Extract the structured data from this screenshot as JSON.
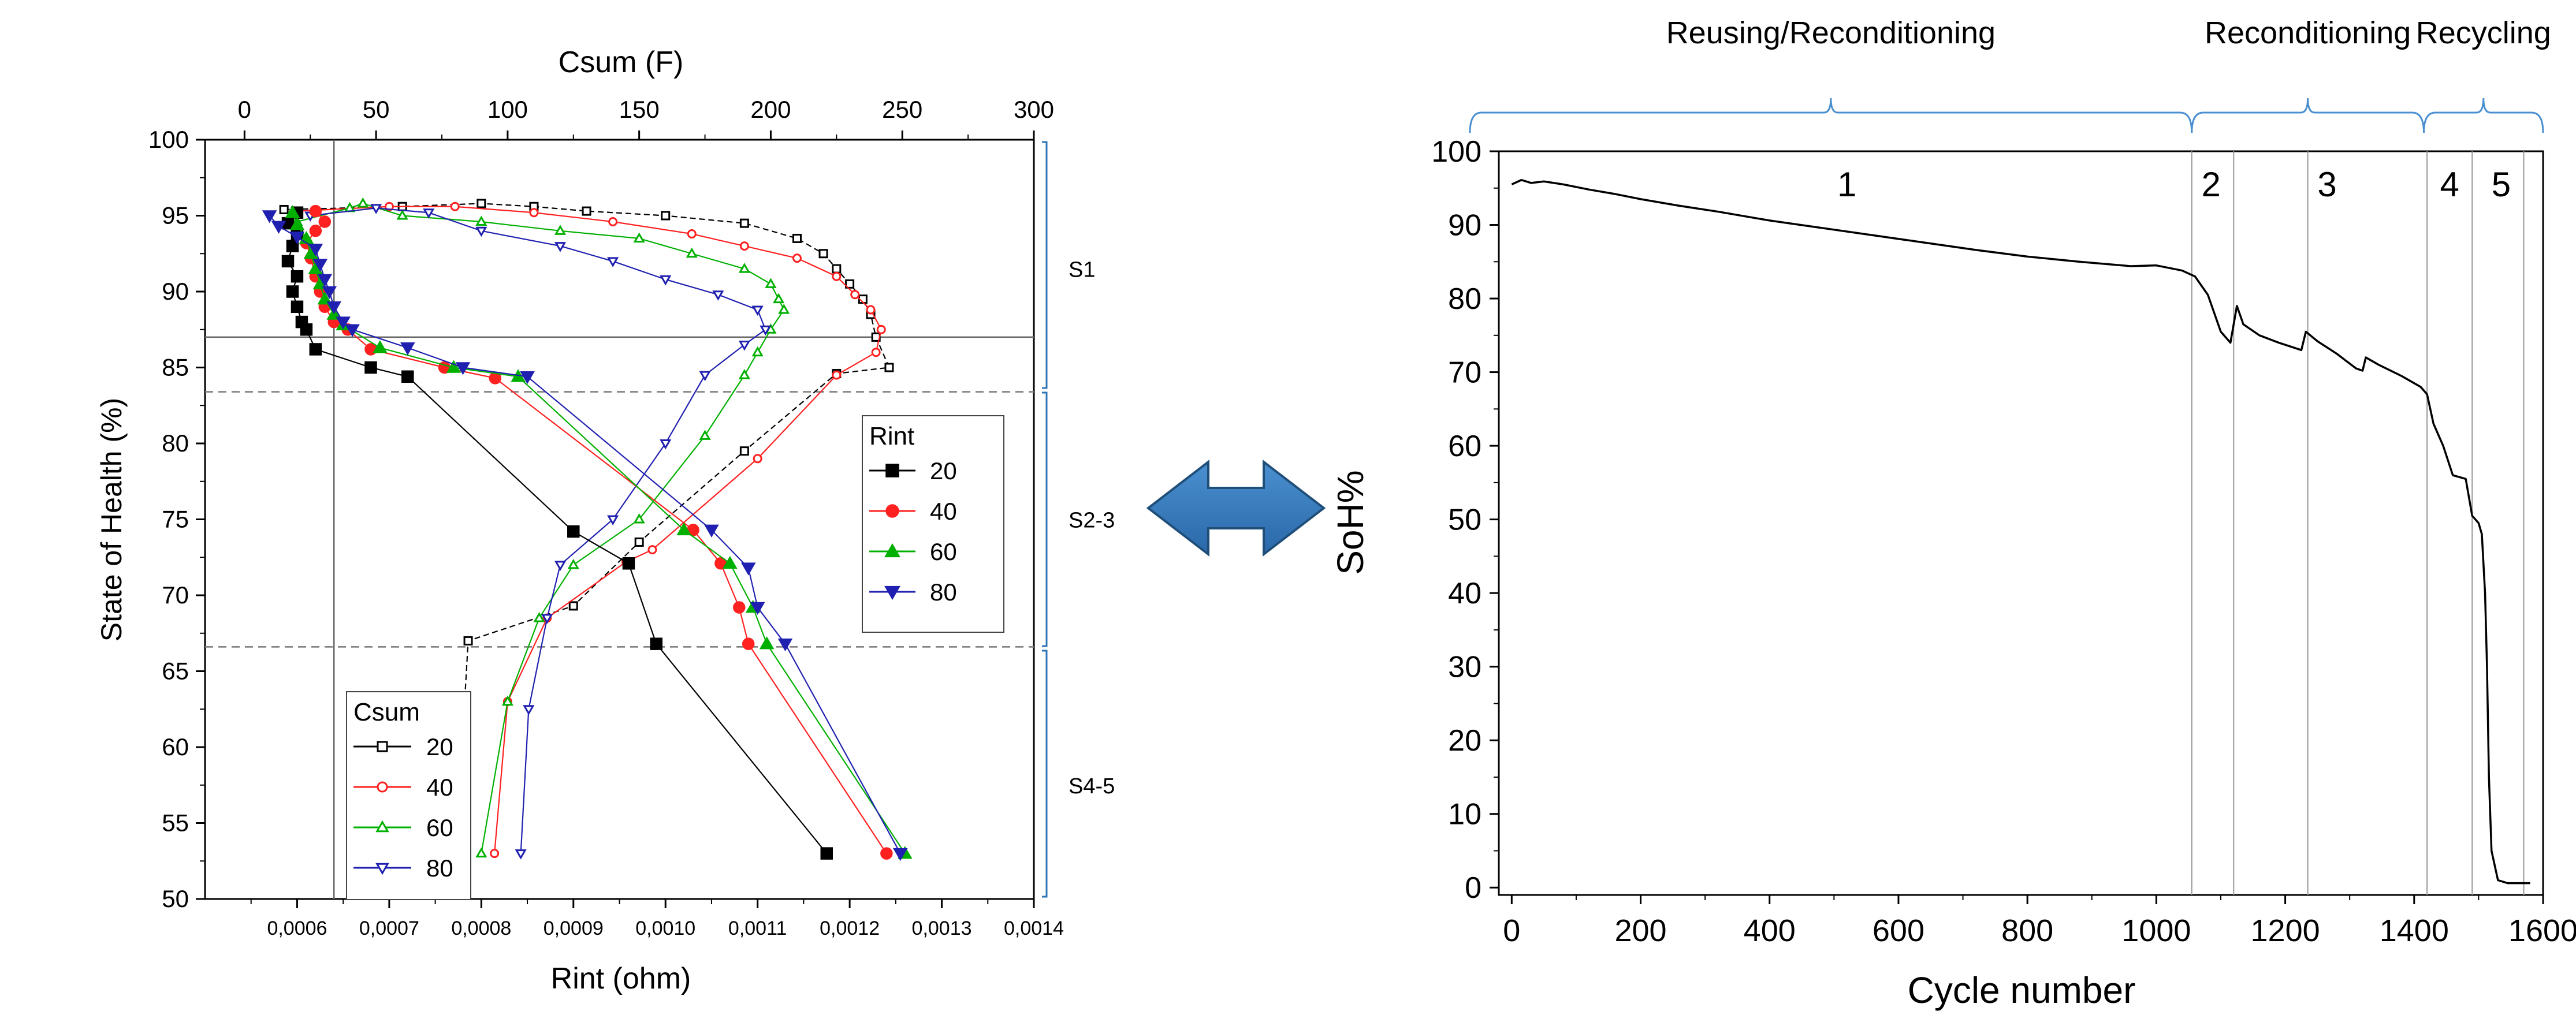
{
  "chart_data": [
    {
      "type": "scatter",
      "ylabel": "State of Health (%)",
      "xlabel": "Rint (ohm)",
      "x2label": "Csum (F)",
      "xlim": [
        0.0005,
        0.0014
      ],
      "x2lim": [
        -15,
        300
      ],
      "ylim": [
        50,
        100
      ],
      "xticks": [
        "0,0006",
        "0,0007",
        "0,0008",
        "0,0009",
        "0,0010",
        "0,0011",
        "0,0012",
        "0,0013",
        "0,0014"
      ],
      "xtick_values": [
        0.0006,
        0.0007,
        0.0008,
        0.0009,
        0.001,
        0.0011,
        0.0012,
        0.0013,
        0.0014
      ],
      "x2ticks": [
        0,
        50,
        100,
        150,
        200,
        250,
        300
      ],
      "yticks": [
        50,
        55,
        60,
        65,
        70,
        75,
        80,
        85,
        90,
        95,
        100
      ],
      "stage_labels": [
        {
          "text": "S1",
          "y": 91.5
        },
        {
          "text": "S2-3",
          "y": 75
        },
        {
          "text": "S4-5",
          "y": 57.5
        }
      ],
      "stage_brackets": [
        [
          100,
          83.5
        ],
        [
          83.5,
          66.5
        ],
        [
          66.5,
          50
        ]
      ],
      "hlines": [
        {
          "y": 87,
          "style": "solid"
        },
        {
          "y": 83.4,
          "style": "dashed"
        },
        {
          "y": 66.6,
          "style": "dashed"
        }
      ],
      "vline_x": 0.00064,
      "rint_legend": {
        "title": "Rint",
        "entries": [
          {
            "label": "20",
            "color": "#000000",
            "marker": "square"
          },
          {
            "label": "40",
            "color": "#ff2020",
            "marker": "circle"
          },
          {
            "label": "60",
            "color": "#00b000",
            "marker": "triangle-up"
          },
          {
            "label": "80",
            "color": "#2020b0",
            "marker": "triangle-down"
          }
        ]
      },
      "csum_legend": {
        "title": "Csum",
        "entries": [
          {
            "label": "20",
            "color": "#000000",
            "marker": "open-square"
          },
          {
            "label": "40",
            "color": "#ff2020",
            "marker": "open-circle"
          },
          {
            "label": "60",
            "color": "#00b000",
            "marker": "open-triangle-up"
          },
          {
            "label": "80",
            "color": "#2020b0",
            "marker": "open-triangle-down"
          }
        ]
      },
      "rint_series": [
        {
          "name": "20",
          "color": "#000000",
          "marker": "square",
          "points": [
            [
              0.0006,
              95.2
            ],
            [
              0.00059,
              94.5
            ],
            [
              0.0006,
              93.8
            ],
            [
              0.000595,
              93.0
            ],
            [
              0.00059,
              92.0
            ],
            [
              0.0006,
              91.0
            ],
            [
              0.000595,
              90.0
            ],
            [
              0.0006,
              89.0
            ],
            [
              0.000605,
              88.0
            ],
            [
              0.00061,
              87.5
            ],
            [
              0.00062,
              86.2
            ],
            [
              0.00068,
              85.0
            ],
            [
              0.00072,
              84.4
            ],
            [
              0.0009,
              74.2
            ],
            [
              0.00096,
              72.1
            ],
            [
              0.00099,
              66.8
            ],
            [
              0.001175,
              53.0
            ]
          ]
        },
        {
          "name": "40",
          "color": "#ff2020",
          "marker": "circle",
          "points": [
            [
              0.00062,
              95.3
            ],
            [
              0.00063,
              94.6
            ],
            [
              0.00062,
              94.0
            ],
            [
              0.00061,
              93.2
            ],
            [
              0.000615,
              92.2
            ],
            [
              0.00062,
              91.0
            ],
            [
              0.000625,
              90.0
            ],
            [
              0.00063,
              89.0
            ],
            [
              0.00064,
              88.0
            ],
            [
              0.000655,
              87.5
            ],
            [
              0.00068,
              86.2
            ],
            [
              0.00076,
              85.0
            ],
            [
              0.000815,
              84.3
            ],
            [
              0.00103,
              74.3
            ],
            [
              0.00106,
              72.1
            ],
            [
              0.00108,
              69.2
            ],
            [
              0.00109,
              66.8
            ],
            [
              0.00124,
              53.0
            ]
          ]
        },
        {
          "name": "60",
          "color": "#00b000",
          "marker": "triangle-up",
          "points": [
            [
              0.000595,
              95.2
            ],
            [
              0.0006,
              94.4
            ],
            [
              0.00061,
              93.5
            ],
            [
              0.000615,
              92.5
            ],
            [
              0.00062,
              91.5
            ],
            [
              0.000625,
              90.5
            ],
            [
              0.00063,
              89.5
            ],
            [
              0.00064,
              88.5
            ],
            [
              0.00065,
              87.8
            ],
            [
              0.00069,
              86.3
            ],
            [
              0.00077,
              85.0
            ],
            [
              0.00084,
              84.4
            ],
            [
              0.00102,
              74.3
            ],
            [
              0.00107,
              72.1
            ],
            [
              0.001095,
              69.2
            ],
            [
              0.00111,
              66.8
            ],
            [
              0.00126,
              53.0
            ]
          ]
        },
        {
          "name": "80",
          "color": "#2020b0",
          "marker": "triangle-down",
          "points": [
            [
              0.00057,
              95.0
            ],
            [
              0.00058,
              94.3
            ],
            [
              0.0006,
              93.6
            ],
            [
              0.00062,
              92.8
            ],
            [
              0.000625,
              91.8
            ],
            [
              0.00063,
              90.8
            ],
            [
              0.000635,
              90.0
            ],
            [
              0.00064,
              89.0
            ],
            [
              0.00065,
              88.0
            ],
            [
              0.00066,
              87.5
            ],
            [
              0.00072,
              86.3
            ],
            [
              0.00078,
              85.0
            ],
            [
              0.00085,
              84.4
            ],
            [
              0.00105,
              74.3
            ],
            [
              0.00109,
              71.8
            ],
            [
              0.0011,
              69.2
            ],
            [
              0.00113,
              66.8
            ],
            [
              0.001255,
              53.0
            ]
          ]
        }
      ],
      "csum_series": [
        {
          "name": "20",
          "color": "#000000",
          "marker": "open-square",
          "points": [
            [
              15,
              95.4
            ],
            [
              60,
              95.6
            ],
            [
              90,
              95.8
            ],
            [
              110,
              95.6
            ],
            [
              130,
              95.3
            ],
            [
              160,
              95.0
            ],
            [
              190,
              94.5
            ],
            [
              210,
              93.5
            ],
            [
              220,
              92.5
            ],
            [
              225,
              91.5
            ],
            [
              230,
              90.5
            ],
            [
              235,
              89.5
            ],
            [
              238,
              88.5
            ],
            [
              240,
              87.0
            ],
            [
              245,
              85.0
            ],
            [
              225,
              84.6
            ],
            [
              190,
              79.5
            ],
            [
              150,
              73.5
            ],
            [
              125,
              69.3
            ],
            [
              85,
              67.0
            ],
            [
              83,
              61.0
            ],
            [
              78,
              53.0
            ]
          ]
        },
        {
          "name": "40",
          "color": "#ff2020",
          "marker": "open-circle",
          "points": [
            [
              20,
              95.3
            ],
            [
              55,
              95.6
            ],
            [
              80,
              95.6
            ],
            [
              110,
              95.2
            ],
            [
              140,
              94.6
            ],
            [
              170,
              93.8
            ],
            [
              190,
              93.0
            ],
            [
              210,
              92.2
            ],
            [
              225,
              91.0
            ],
            [
              232,
              89.8
            ],
            [
              238,
              88.8
            ],
            [
              242,
              87.5
            ],
            [
              240,
              86.0
            ],
            [
              225,
              84.5
            ],
            [
              195,
              79.0
            ],
            [
              155,
              73.0
            ],
            [
              145,
              72.2
            ],
            [
              115,
              68.5
            ],
            [
              100,
              63.0
            ],
            [
              95,
              53.0
            ]
          ]
        },
        {
          "name": "60",
          "color": "#00b000",
          "marker": "open-triangle-up",
          "points": [
            [
              20,
              94.6
            ],
            [
              40,
              95.5
            ],
            [
              45,
              95.8
            ],
            [
              60,
              95.0
            ],
            [
              90,
              94.6
            ],
            [
              120,
              94.0
            ],
            [
              150,
              93.5
            ],
            [
              170,
              92.5
            ],
            [
              190,
              91.5
            ],
            [
              200,
              90.5
            ],
            [
              203,
              89.5
            ],
            [
              205,
              88.8
            ],
            [
              200,
              87.5
            ],
            [
              195,
              86.0
            ],
            [
              190,
              84.5
            ],
            [
              175,
              80.5
            ],
            [
              150,
              75.0
            ],
            [
              125,
              72.0
            ],
            [
              112,
              68.5
            ],
            [
              100,
              63.0
            ],
            [
              90,
              53.0
            ]
          ]
        },
        {
          "name": "80",
          "color": "#2020b0",
          "marker": "open-triangle-down",
          "points": [
            [
              25,
              95.0
            ],
            [
              50,
              95.5
            ],
            [
              70,
              95.2
            ],
            [
              90,
              94.0
            ],
            [
              120,
              93.0
            ],
            [
              140,
              92.0
            ],
            [
              160,
              90.8
            ],
            [
              180,
              89.8
            ],
            [
              195,
              88.8
            ],
            [
              198,
              87.5
            ],
            [
              190,
              86.5
            ],
            [
              175,
              84.5
            ],
            [
              160,
              80.0
            ],
            [
              140,
              75.0
            ],
            [
              120,
              72.0
            ],
            [
              115,
              68.5
            ],
            [
              108,
              62.5
            ],
            [
              105,
              53.0
            ]
          ]
        }
      ]
    },
    {
      "type": "line",
      "xlabel": "Cycle number",
      "ylabel": "SoH%",
      "xlim": [
        -20,
        1600
      ],
      "ylim": [
        -1,
        100
      ],
      "xticks": [
        0,
        200,
        400,
        600,
        800,
        1000,
        1200,
        1400,
        1600
      ],
      "yticks": [
        0,
        10,
        20,
        30,
        40,
        50,
        60,
        70,
        80,
        90,
        100
      ],
      "phases": [
        {
          "label": "1",
          "x": 520
        },
        {
          "label": "2",
          "x": 1085
        },
        {
          "label": "3",
          "x": 1265
        },
        {
          "label": "4",
          "x": 1455
        },
        {
          "label": "5",
          "x": 1535
        }
      ],
      "vlines": [
        1055,
        1120,
        1235,
        1420,
        1490,
        1570
      ],
      "braces": [
        {
          "label": "Reusing/Reconditioning",
          "from": -20,
          "to": 1055
        },
        {
          "label": "Reconditioning",
          "from": 1055,
          "to": 1415
        },
        {
          "label": "Recycling",
          "from": 1415,
          "to": 1600
        }
      ],
      "series": [
        {
          "color": "#000000",
          "points": [
            [
              0,
              95.5
            ],
            [
              15,
              96.1
            ],
            [
              30,
              95.7
            ],
            [
              50,
              95.9
            ],
            [
              80,
              95.5
            ],
            [
              120,
              94.8
            ],
            [
              160,
              94.2
            ],
            [
              200,
              93.5
            ],
            [
              260,
              92.6
            ],
            [
              320,
              91.8
            ],
            [
              400,
              90.6
            ],
            [
              480,
              89.6
            ],
            [
              560,
              88.6
            ],
            [
              640,
              87.6
            ],
            [
              720,
              86.6
            ],
            [
              800,
              85.7
            ],
            [
              880,
              85.0
            ],
            [
              960,
              84.4
            ],
            [
              1000,
              84.5
            ],
            [
              1040,
              83.8
            ],
            [
              1060,
              83.0
            ],
            [
              1080,
              80.5
            ],
            [
              1100,
              75.5
            ],
            [
              1115,
              74.0
            ],
            [
              1120,
              76.5
            ],
            [
              1125,
              79.0
            ],
            [
              1135,
              76.5
            ],
            [
              1160,
              75.0
            ],
            [
              1190,
              74.0
            ],
            [
              1225,
              73.0
            ],
            [
              1232,
              75.5
            ],
            [
              1250,
              74.2
            ],
            [
              1280,
              72.5
            ],
            [
              1310,
              70.5
            ],
            [
              1320,
              70.2
            ],
            [
              1325,
              72.0
            ],
            [
              1345,
              71.0
            ],
            [
              1380,
              69.5
            ],
            [
              1410,
              68.0
            ],
            [
              1420,
              67.0
            ],
            [
              1430,
              63.0
            ],
            [
              1445,
              60.0
            ],
            [
              1460,
              56.0
            ],
            [
              1480,
              55.5
            ],
            [
              1490,
              50.5
            ],
            [
              1500,
              49.5
            ],
            [
              1505,
              48.0
            ],
            [
              1510,
              40.0
            ],
            [
              1513,
              30.0
            ],
            [
              1516,
              15.0
            ],
            [
              1520,
              5.0
            ],
            [
              1530,
              1.0
            ],
            [
              1545,
              0.6
            ],
            [
              1570,
              0.6
            ],
            [
              1580,
              0.6
            ]
          ]
        }
      ]
    }
  ],
  "arrow": {
    "color": "#2e75b6",
    "shape": "double-headed-arrow"
  }
}
